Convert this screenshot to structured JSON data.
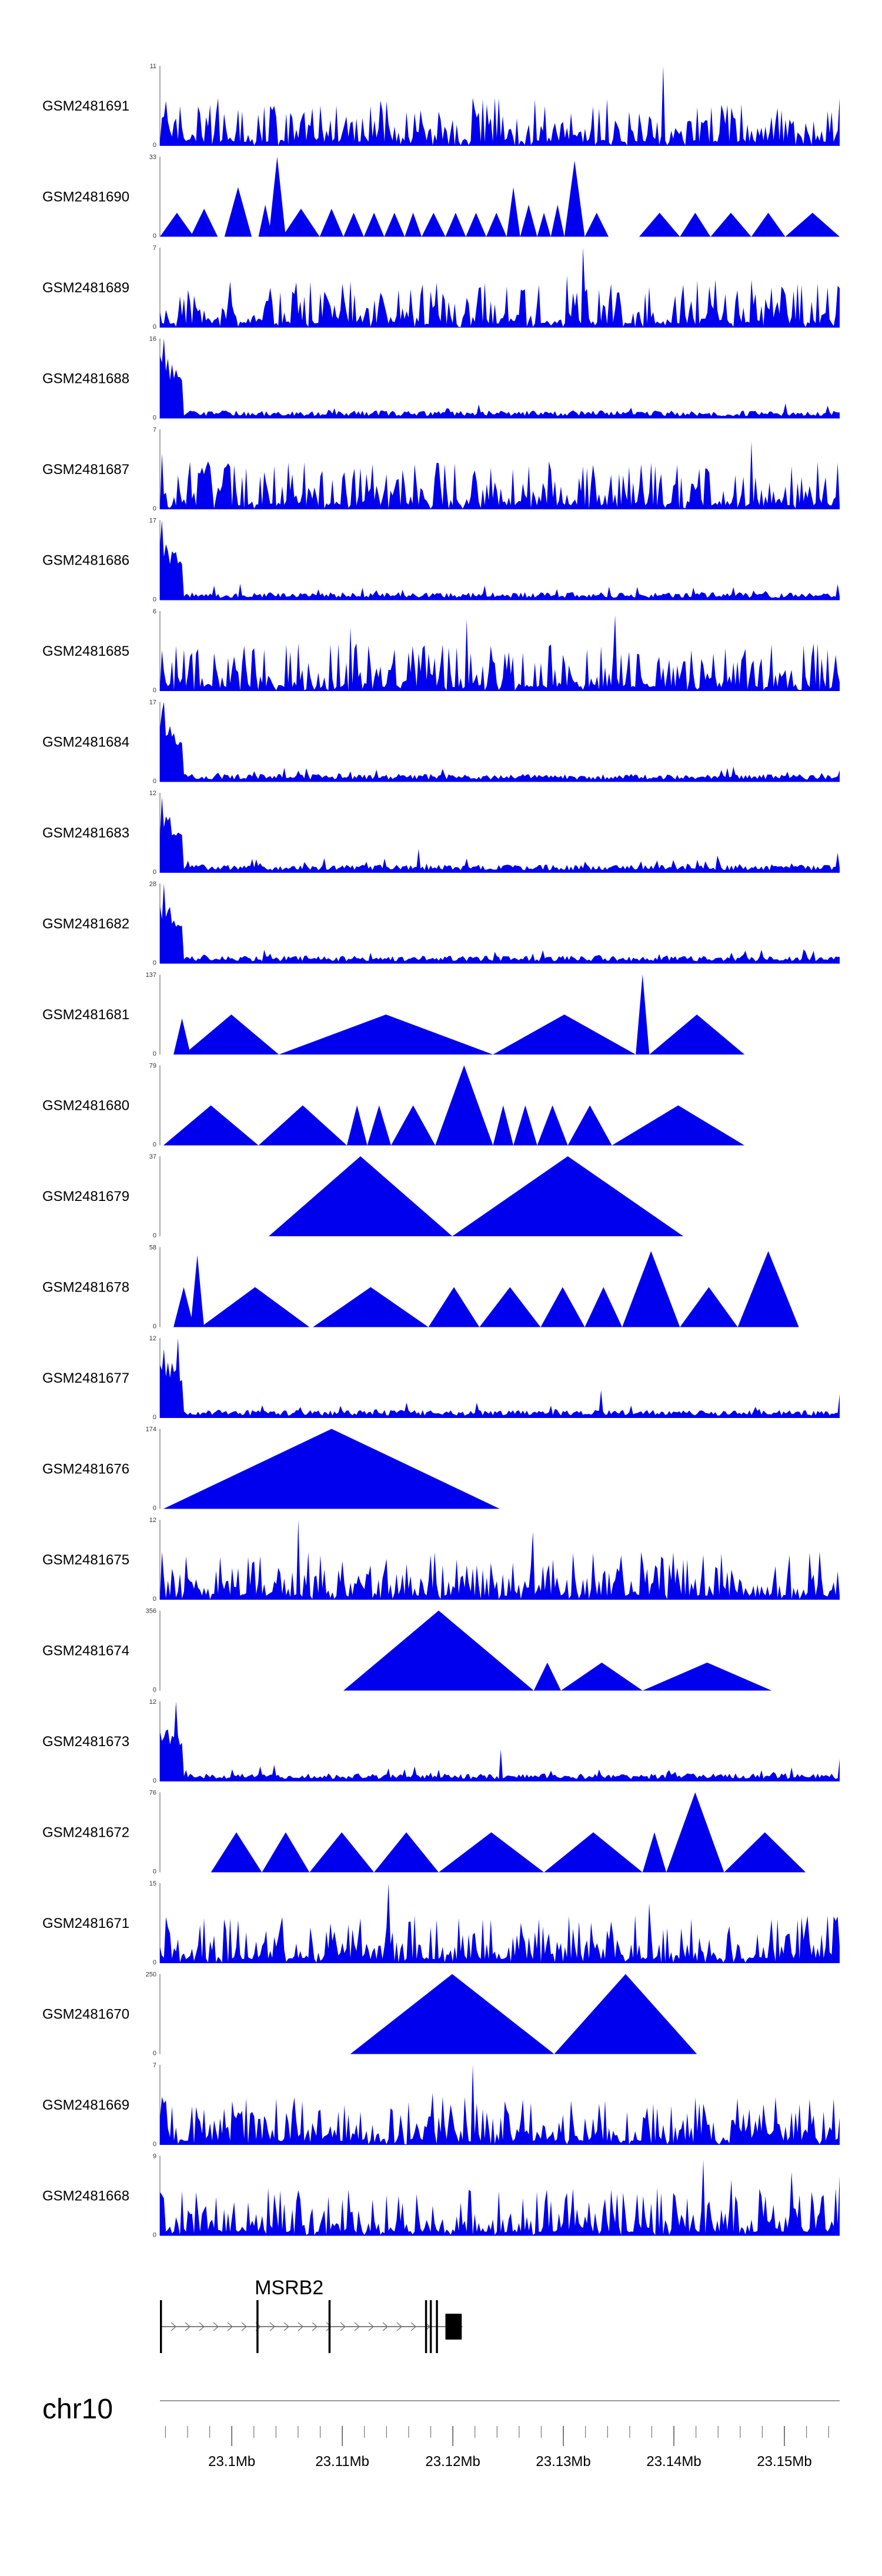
{
  "chart_data": {
    "type": "area",
    "title": "",
    "chromosome": "chr10",
    "x_range_mb": [
      23.0935,
      23.155
    ],
    "x_ticks": [
      {
        "pos": 23.1,
        "label": "23.1Mb"
      },
      {
        "pos": 23.11,
        "label": "23.11Mb"
      },
      {
        "pos": 23.12,
        "label": "23.12Mb"
      },
      {
        "pos": 23.13,
        "label": "23.13Mb"
      },
      {
        "pos": 23.14,
        "label": "23.14Mb"
      },
      {
        "pos": 23.15,
        "label": "23.15Mb"
      }
    ],
    "minor_tick_step_mb": 0.002,
    "fill_color": "#0000ee",
    "tracks": [
      {
        "name": "GSM2481691",
        "ymin": "0",
        "ymax": "11",
        "style": "dense",
        "profile": "uniform",
        "peaks": [
          [
            0.74,
            1.0
          ],
          [
            0.46,
            0.6
          ],
          [
            0.999,
            0.6
          ],
          [
            0.31,
            0.5
          ]
        ]
      },
      {
        "name": "GSM2481690",
        "ymin": "0",
        "ymax": "33",
        "style": "triangles",
        "segments": [
          [
            0.0,
            0.05,
            0.3
          ],
          [
            0.045,
            0.085,
            0.35
          ],
          [
            0.095,
            0.135,
            0.62
          ],
          [
            0.145,
            0.165,
            0.4
          ],
          [
            0.16,
            0.185,
            1.0
          ],
          [
            0.18,
            0.235,
            0.35
          ],
          [
            0.235,
            0.27,
            0.35
          ],
          [
            0.27,
            0.3,
            0.3
          ],
          [
            0.3,
            0.33,
            0.3
          ],
          [
            0.33,
            0.36,
            0.3
          ],
          [
            0.36,
            0.385,
            0.3
          ],
          [
            0.385,
            0.42,
            0.3
          ],
          [
            0.42,
            0.45,
            0.3
          ],
          [
            0.45,
            0.48,
            0.3
          ],
          [
            0.48,
            0.51,
            0.3
          ],
          [
            0.51,
            0.53,
            0.62
          ],
          [
            0.53,
            0.555,
            0.4
          ],
          [
            0.555,
            0.575,
            0.3
          ],
          [
            0.575,
            0.595,
            0.4
          ],
          [
            0.595,
            0.625,
            0.95
          ],
          [
            0.625,
            0.66,
            0.3
          ],
          [
            0.705,
            0.765,
            0.3
          ],
          [
            0.765,
            0.81,
            0.3
          ],
          [
            0.81,
            0.87,
            0.3
          ],
          [
            0.87,
            0.92,
            0.3
          ],
          [
            0.92,
            1.0,
            0.3
          ]
        ]
      },
      {
        "name": "GSM2481689",
        "ymin": "0",
        "ymax": "7",
        "style": "dense",
        "profile": "uniform",
        "peaks": [
          [
            0.623,
            1.0
          ],
          [
            0.6,
            0.65
          ],
          [
            0.9,
            0.5
          ]
        ]
      },
      {
        "name": "GSM2481688",
        "ymin": "0",
        "ymax": "16",
        "style": "dense",
        "profile": "decay",
        "peaks": [
          [
            0.005,
            1.0
          ],
          [
            0.012,
            0.75
          ],
          [
            0.02,
            0.5
          ]
        ]
      },
      {
        "name": "GSM2481687",
        "ymin": "0",
        "ymax": "7",
        "style": "dense",
        "profile": "uniform",
        "peaks": [
          [
            0.87,
            0.85
          ],
          [
            0.003,
            0.7
          ],
          [
            0.07,
            0.6
          ]
        ]
      },
      {
        "name": "GSM2481686",
        "ymin": "0",
        "ymax": "17",
        "style": "dense",
        "profile": "decay",
        "peaks": [
          [
            0.004,
            1.0
          ],
          [
            0.01,
            0.7
          ],
          [
            0.998,
            0.2
          ]
        ]
      },
      {
        "name": "GSM2481685",
        "ymin": "0",
        "ymax": "6",
        "style": "dense",
        "profile": "uniform",
        "peaks": [
          [
            0.67,
            0.95
          ],
          [
            0.45,
            0.9
          ],
          [
            0.28,
            0.8
          ]
        ]
      },
      {
        "name": "GSM2481684",
        "ymin": "0",
        "ymax": "17",
        "style": "dense",
        "profile": "decay",
        "peaks": [
          [
            0.006,
            1.0
          ],
          [
            0.014,
            0.7
          ]
        ]
      },
      {
        "name": "GSM2481683",
        "ymin": "0",
        "ymax": "12",
        "style": "dense",
        "profile": "decay",
        "peaks": [
          [
            0.004,
            0.95
          ],
          [
            0.998,
            0.25
          ],
          [
            0.38,
            0.3
          ]
        ]
      },
      {
        "name": "GSM2481682",
        "ymin": "0",
        "ymax": "28",
        "style": "dense",
        "profile": "decay",
        "peaks": [
          [
            0.005,
            1.0
          ],
          [
            0.012,
            0.6
          ]
        ]
      },
      {
        "name": "GSM2481681",
        "ymin": "0",
        "ymax": "137",
        "style": "triangles",
        "segments": [
          [
            0.02,
            0.045,
            0.45
          ],
          [
            0.035,
            0.175,
            0.5
          ],
          [
            0.175,
            0.49,
            0.5
          ],
          [
            0.49,
            0.7,
            0.5
          ],
          [
            0.7,
            0.72,
            1.0
          ],
          [
            0.72,
            0.86,
            0.5
          ]
        ]
      },
      {
        "name": "GSM2481680",
        "ymin": "0",
        "ymax": "79",
        "style": "triangles",
        "segments": [
          [
            0.005,
            0.145,
            0.5
          ],
          [
            0.145,
            0.275,
            0.5
          ],
          [
            0.275,
            0.305,
            0.5
          ],
          [
            0.305,
            0.34,
            0.5
          ],
          [
            0.34,
            0.405,
            0.5
          ],
          [
            0.405,
            0.49,
            1.0
          ],
          [
            0.49,
            0.52,
            0.5
          ],
          [
            0.52,
            0.555,
            0.5
          ],
          [
            0.555,
            0.6,
            0.5
          ],
          [
            0.6,
            0.665,
            0.5
          ],
          [
            0.665,
            0.86,
            0.5
          ]
        ]
      },
      {
        "name": "GSM2481679",
        "ymin": "0",
        "ymax": "37",
        "style": "triangles",
        "segments": [
          [
            0.16,
            0.43,
            1.0
          ],
          [
            0.43,
            0.77,
            1.0
          ]
        ]
      },
      {
        "name": "GSM2481678",
        "ymin": "0",
        "ymax": "58",
        "style": "triangles",
        "segments": [
          [
            0.02,
            0.05,
            0.5
          ],
          [
            0.045,
            0.065,
            0.9
          ],
          [
            0.06,
            0.22,
            0.5
          ],
          [
            0.225,
            0.395,
            0.5
          ],
          [
            0.395,
            0.47,
            0.5
          ],
          [
            0.47,
            0.56,
            0.5
          ],
          [
            0.56,
            0.625,
            0.5
          ],
          [
            0.625,
            0.68,
            0.5
          ],
          [
            0.68,
            0.765,
            0.95
          ],
          [
            0.765,
            0.85,
            0.5
          ],
          [
            0.85,
            0.94,
            0.95
          ]
        ]
      },
      {
        "name": "GSM2481677",
        "ymin": "0",
        "ymax": "12",
        "style": "dense",
        "profile": "decay",
        "peaks": [
          [
            0.028,
            1.0
          ],
          [
            0.999,
            0.3
          ],
          [
            0.65,
            0.35
          ]
        ]
      },
      {
        "name": "GSM2481676",
        "ymin": "0",
        "ymax": "174",
        "style": "triangles",
        "segments": [
          [
            0.005,
            0.5,
            1.0
          ]
        ]
      },
      {
        "name": "GSM2481675",
        "ymin": "0",
        "ymax": "12",
        "style": "dense",
        "profile": "uniform",
        "peaks": [
          [
            0.205,
            1.0
          ],
          [
            0.55,
            0.85
          ],
          [
            0.97,
            0.6
          ],
          [
            0.003,
            0.6
          ]
        ]
      },
      {
        "name": "GSM2481674",
        "ymin": "0",
        "ymax": "356",
        "style": "triangles",
        "segments": [
          [
            0.27,
            0.55,
            1.0
          ],
          [
            0.55,
            0.59,
            0.35
          ],
          [
            0.59,
            0.71,
            0.35
          ],
          [
            0.71,
            0.9,
            0.35
          ]
        ]
      },
      {
        "name": "GSM2481673",
        "ymin": "0",
        "ymax": "12",
        "style": "dense",
        "profile": "decay",
        "peaks": [
          [
            0.025,
            1.0
          ],
          [
            0.999,
            0.28
          ],
          [
            0.5,
            0.4
          ]
        ]
      },
      {
        "name": "GSM2481672",
        "ymin": "0",
        "ymax": "76",
        "style": "triangles",
        "segments": [
          [
            0.075,
            0.15,
            0.5
          ],
          [
            0.15,
            0.22,
            0.5
          ],
          [
            0.22,
            0.315,
            0.5
          ],
          [
            0.315,
            0.41,
            0.5
          ],
          [
            0.41,
            0.565,
            0.5
          ],
          [
            0.565,
            0.71,
            0.5
          ],
          [
            0.71,
            0.745,
            0.5
          ],
          [
            0.745,
            0.83,
            1.0
          ],
          [
            0.83,
            0.95,
            0.5
          ]
        ]
      },
      {
        "name": "GSM2481671",
        "ymin": "0",
        "ymax": "15",
        "style": "dense",
        "profile": "uniform",
        "peaks": [
          [
            0.335,
            1.0
          ],
          [
            0.72,
            0.75
          ],
          [
            0.9,
            0.55
          ]
        ]
      },
      {
        "name": "GSM2481670",
        "ymin": "0",
        "ymax": "250",
        "style": "triangles",
        "segments": [
          [
            0.28,
            0.58,
            1.0
          ],
          [
            0.58,
            0.79,
            1.0
          ]
        ]
      },
      {
        "name": "GSM2481669",
        "ymin": "0",
        "ymax": "7",
        "style": "dense",
        "profile": "uniform",
        "peaks": [
          [
            0.46,
            1.0
          ],
          [
            0.4,
            0.65
          ],
          [
            0.003,
            0.6
          ]
        ]
      },
      {
        "name": "GSM2481668",
        "ymin": "0",
        "ymax": "9",
        "style": "dense",
        "profile": "uniform",
        "peaks": [
          [
            0.8,
            0.95
          ],
          [
            0.84,
            0.7
          ],
          [
            0.93,
            0.8
          ],
          [
            0.999,
            0.75
          ]
        ]
      }
    ],
    "gene_track": {
      "gene": "MSRB2",
      "strand": "+",
      "start_frac": 0.0,
      "end_frac": 0.445,
      "exons": [
        [
          0.0,
          0.003
        ],
        [
          0.142,
          0.145
        ],
        [
          0.248,
          0.251
        ],
        [
          0.39,
          0.393
        ],
        [
          0.397,
          0.4
        ],
        [
          0.406,
          0.409
        ],
        [
          0.42,
          0.444
        ]
      ]
    }
  }
}
